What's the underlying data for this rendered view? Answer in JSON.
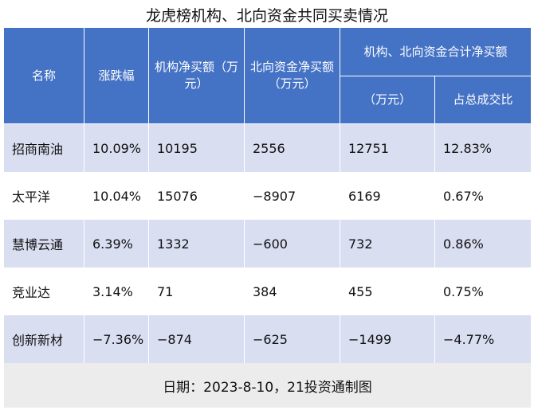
{
  "title": "龙虎榜机构、北向资金共同买卖情况",
  "header": {
    "name": "名称",
    "change": "涨跌幅",
    "inst_net": "机构净买额（万元）",
    "north_net": "北向资金净买额（万元）",
    "combined_group": "机构、北向资金合计净买额",
    "combined_amount": "（万元）",
    "turnover_share": "占总成交比"
  },
  "rows": [
    {
      "name": "招商南油",
      "change": "10.09%",
      "inst_net": "10195",
      "north_net": "2556",
      "combined": "12751",
      "share": "12.83%"
    },
    {
      "name": "太平洋",
      "change": "10.04%",
      "inst_net": "15076",
      "north_net": "−8907",
      "combined": "6169",
      "share": "0.67%"
    },
    {
      "name": "慧博云通",
      "change": "6.39%",
      "inst_net": "1332",
      "north_net": "−600",
      "combined": "732",
      "share": "0.86%"
    },
    {
      "name": "竞业达",
      "change": "3.14%",
      "inst_net": "71",
      "north_net": "384",
      "combined": "455",
      "share": "0.75%"
    },
    {
      "name": "创新新材",
      "change": "−7.36%",
      "inst_net": "−874",
      "north_net": "−625",
      "combined": "−1499",
      "share": "−4.77%"
    }
  ],
  "footer": "日期：2023-8-10，21投资通制图"
}
